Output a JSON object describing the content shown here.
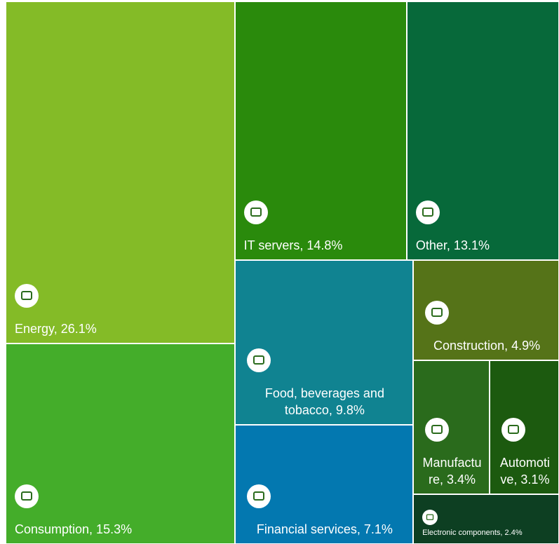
{
  "chart_data": {
    "type": "treemap",
    "values": [
      26.1,
      15.3,
      14.8,
      13.1,
      9.8,
      7.1,
      4.9,
      3.4,
      3.1,
      2.4
    ],
    "value_labels": [
      "Energy, 26.1%",
      "Consumption, 15.3%",
      "IT servers, 14.8%",
      "Other, 13.1%",
      "Food, beverages and tobacco, 9.8%",
      "Financial services, 7.1%",
      "Construction, 4.9%",
      "Manufacture, 3.4%",
      "Automotive, 3.1%",
      "Electronic components, 2.4%"
    ],
    "colors": [
      "#84bb27",
      "#44ad2a",
      "#2a8a0c",
      "#07693a",
      "#108391",
      "#0378b0",
      "#557318",
      "#2a6b1c",
      "#1c5a0f",
      "#0d3f22"
    ]
  }
}
